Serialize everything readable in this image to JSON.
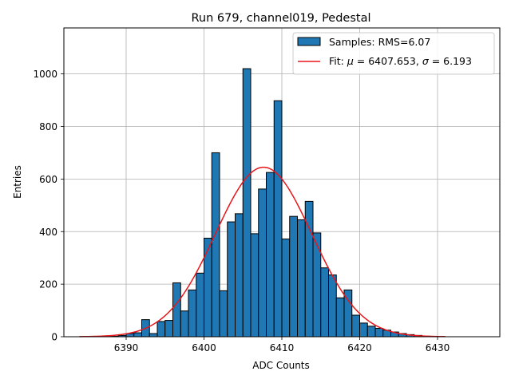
{
  "chart_data": {
    "type": "bar",
    "title": "Run 679, channel019, Pedestal",
    "xlabel": "ADC Counts",
    "ylabel": "Entries",
    "xlim": [
      6382.0,
      6438.0
    ],
    "ylim": [
      0,
      1175
    ],
    "xticks": [
      6390,
      6400,
      6410,
      6420,
      6430
    ],
    "yticks": [
      0,
      200,
      400,
      600,
      800,
      1000
    ],
    "grid": true,
    "legend_position": "top-right",
    "bins": {
      "start": 6384,
      "width": 1,
      "counts": [
        0,
        0,
        0,
        0,
        2,
        5,
        12,
        15,
        65,
        12,
        58,
        62,
        205,
        98,
        178,
        242,
        375,
        700,
        175,
        437,
        468,
        1020,
        392,
        562,
        625,
        898,
        372,
        458,
        445,
        515,
        395,
        262,
        235,
        148,
        178,
        82,
        52,
        40,
        32,
        25,
        18,
        12,
        8,
        5,
        2,
        1,
        0,
        0,
        0,
        0,
        0,
        0
      ]
    },
    "series": [
      {
        "name": "Samples: RMS=6.07",
        "kind": "histogram",
        "color": "#1f77b4",
        "edgecolor": "#000000"
      },
      {
        "name": "Fit: μ = 6407.653, σ = 6.193",
        "kind": "gaussian-fit",
        "color": "#e8161a",
        "mu": 6407.653,
        "sigma": 6.193,
        "amplitude": 645,
        "x_range": [
          6384,
          6431
        ]
      }
    ],
    "legend": {
      "samples_prefix": "Samples: RMS=",
      "samples_value": "6.07",
      "fit_prefix": "Fit: ",
      "mu_symbol": "μ",
      "mu_value": " = 6407.653, ",
      "sigma_symbol": "σ",
      "sigma_value": " = 6.193"
    }
  }
}
